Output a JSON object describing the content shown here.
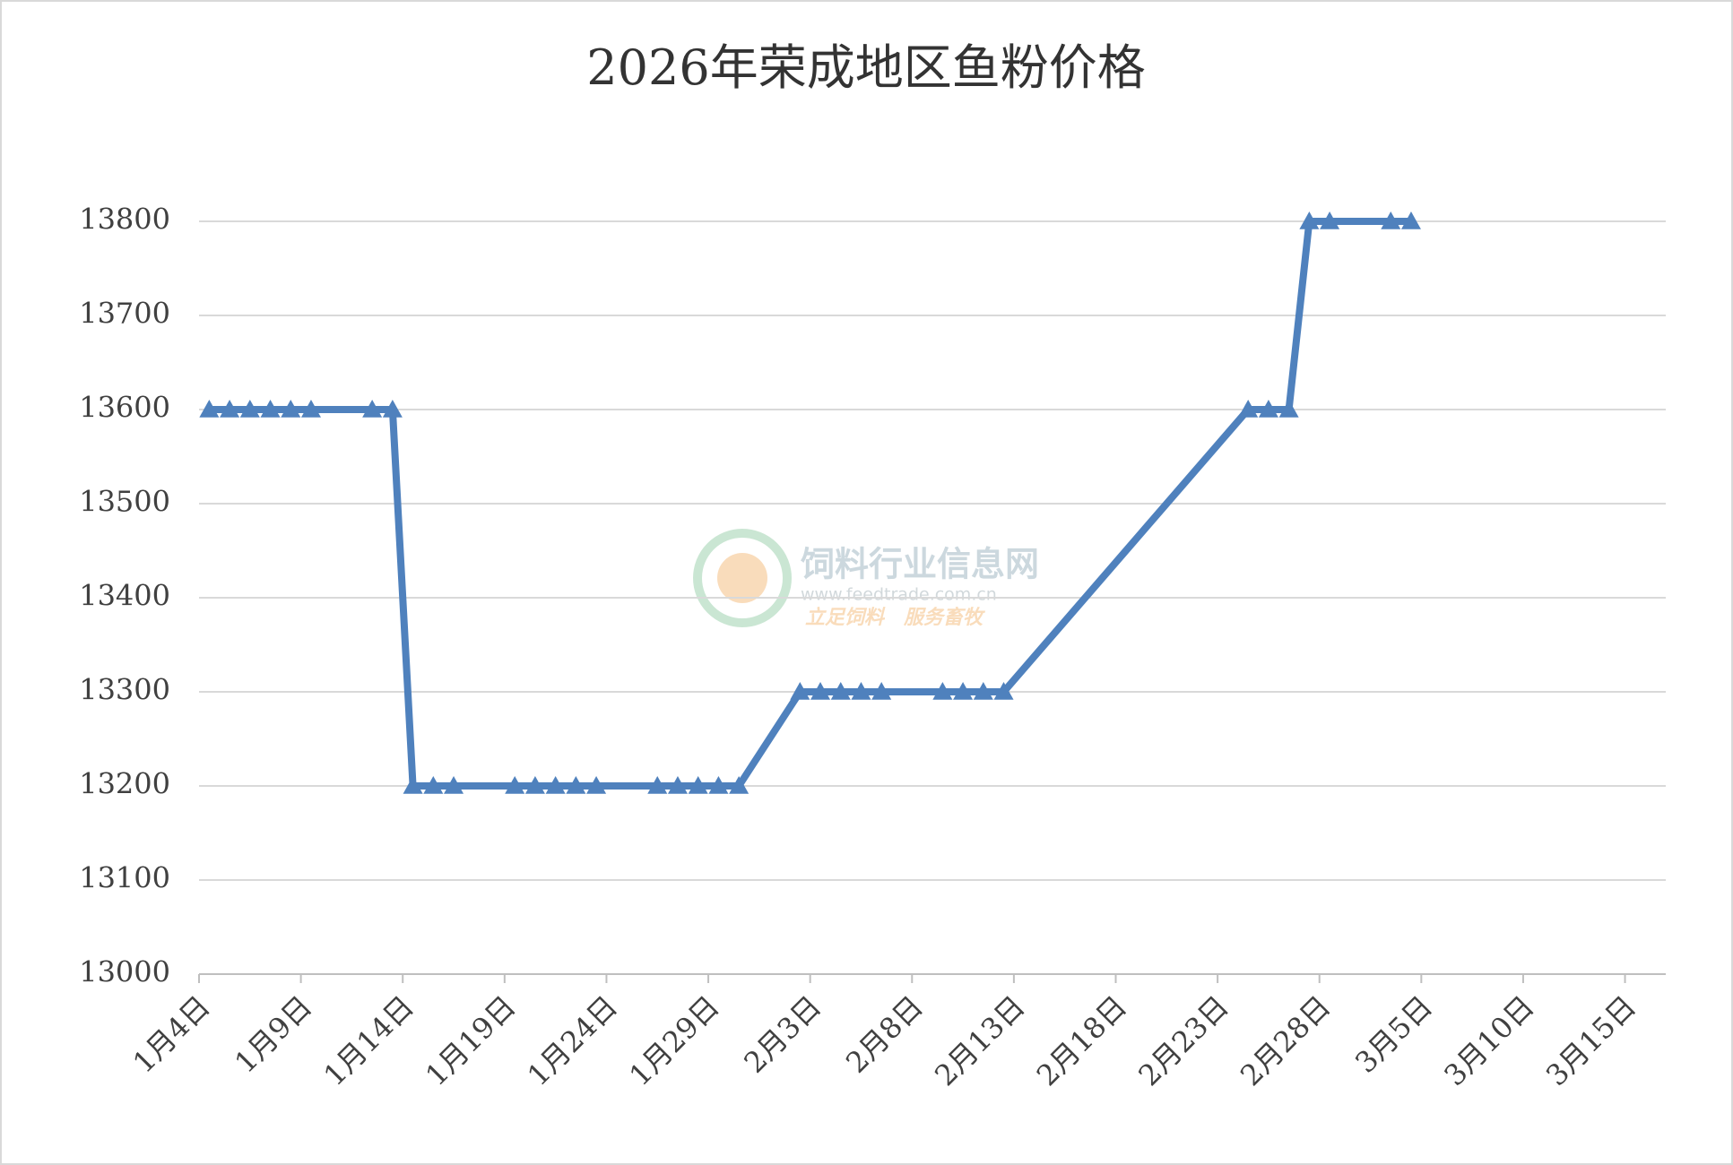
{
  "chart_data": {
    "type": "line",
    "title": "2026年荣成地区鱼粉价格",
    "x": [
      "1月4日",
      "1月5日",
      "1月6日",
      "1月7日",
      "1月8日",
      "1月9日",
      "1月12日",
      "1月13日",
      "1月14日",
      "1月15日",
      "1月16日",
      "1月19日",
      "1月20日",
      "1月21日",
      "1月22日",
      "1月23日",
      "1月26日",
      "1月27日",
      "1月28日",
      "1月29日",
      "1月30日",
      "2月2日",
      "2月3日",
      "2月4日",
      "2月5日",
      "2月6日",
      "2月9日",
      "2月10日",
      "2月11日",
      "2月12日",
      "2月24日",
      "2月25日",
      "2月26日",
      "2月27日",
      "2月28日",
      "3月3日",
      "3月4日"
    ],
    "series": [
      {
        "name": "鱼粉价格",
        "color": "#4f81bd",
        "values": [
          13600,
          13600,
          13600,
          13600,
          13600,
          13600,
          13600,
          13600,
          13200,
          13200,
          13200,
          13200,
          13200,
          13200,
          13200,
          13200,
          13200,
          13200,
          13200,
          13200,
          13200,
          13300,
          13300,
          13300,
          13300,
          13300,
          13300,
          13300,
          13300,
          13300,
          13600,
          13600,
          13600,
          13800,
          13800,
          13800,
          13800
        ]
      }
    ],
    "xlim": [
      "1月4日",
      "3月17日"
    ],
    "xticks": [
      "1月4日",
      "1月9日",
      "1月14日",
      "1月19日",
      "1月24日",
      "1月29日",
      "2月3日",
      "2月8日",
      "2月13日",
      "2月18日",
      "2月23日",
      "2月28日",
      "3月5日",
      "3月10日",
      "3月15日"
    ],
    "ylim": [
      13000,
      13800
    ],
    "yticks": [
      13000,
      13100,
      13200,
      13300,
      13400,
      13500,
      13600,
      13700,
      13800
    ],
    "grid": true,
    "watermark": {
      "name": "饲料行业信息网",
      "url": "www.feedtrade.com.cn",
      "slogan": "立足饲料　服务畜牧"
    }
  }
}
